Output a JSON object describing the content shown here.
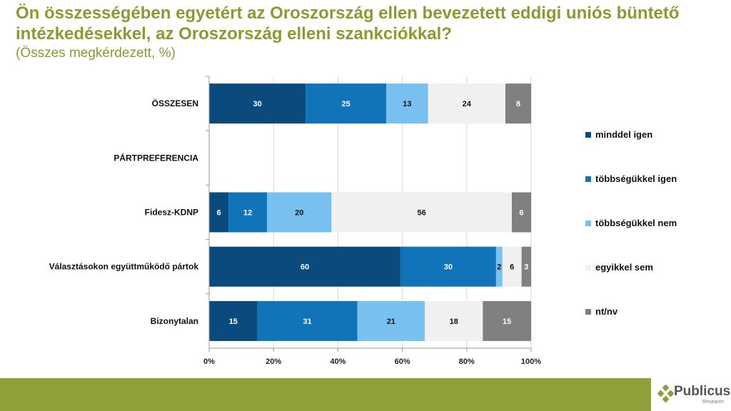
{
  "header": {
    "title": "Ön összességében egyetért az Oroszország ellen bevezetett eddigi uniós büntető intézkedésekkel, az Oroszország elleni szankciókkal?",
    "subtitle": "(Összes megkérdezett, %)"
  },
  "chart_data": {
    "type": "bar",
    "orientation": "horizontal",
    "stacked": true,
    "normalized": true,
    "categories": [
      "ÖSSZESEN",
      "PÁRTPREFERENCIA",
      "Fidesz-KDNP",
      "Választásokon együttműködő pártok",
      "Bizonytalan"
    ],
    "series": [
      {
        "name": "minddel igen",
        "color": "#0b4a7c",
        "values": [
          30,
          null,
          6,
          60,
          15
        ]
      },
      {
        "name": "többségükkel igen",
        "color": "#1173b8",
        "values": [
          25,
          null,
          12,
          30,
          31
        ]
      },
      {
        "name": "többségükkel nem",
        "color": "#78c0f0",
        "values": [
          13,
          null,
          20,
          2,
          21
        ]
      },
      {
        "name": "egyikkel sem",
        "color": "#f0f0f0",
        "values": [
          24,
          null,
          56,
          6,
          18
        ]
      },
      {
        "name": "nt/nv",
        "color": "#808080",
        "values": [
          8,
          null,
          6,
          3,
          15
        ]
      }
    ],
    "xticks": [
      "0%",
      "20%",
      "40%",
      "60%",
      "80%",
      "100%"
    ],
    "xlim": [
      0,
      100
    ],
    "legend": "right",
    "grid": true
  },
  "logo": {
    "name": "Publicus",
    "sub": "Research"
  }
}
